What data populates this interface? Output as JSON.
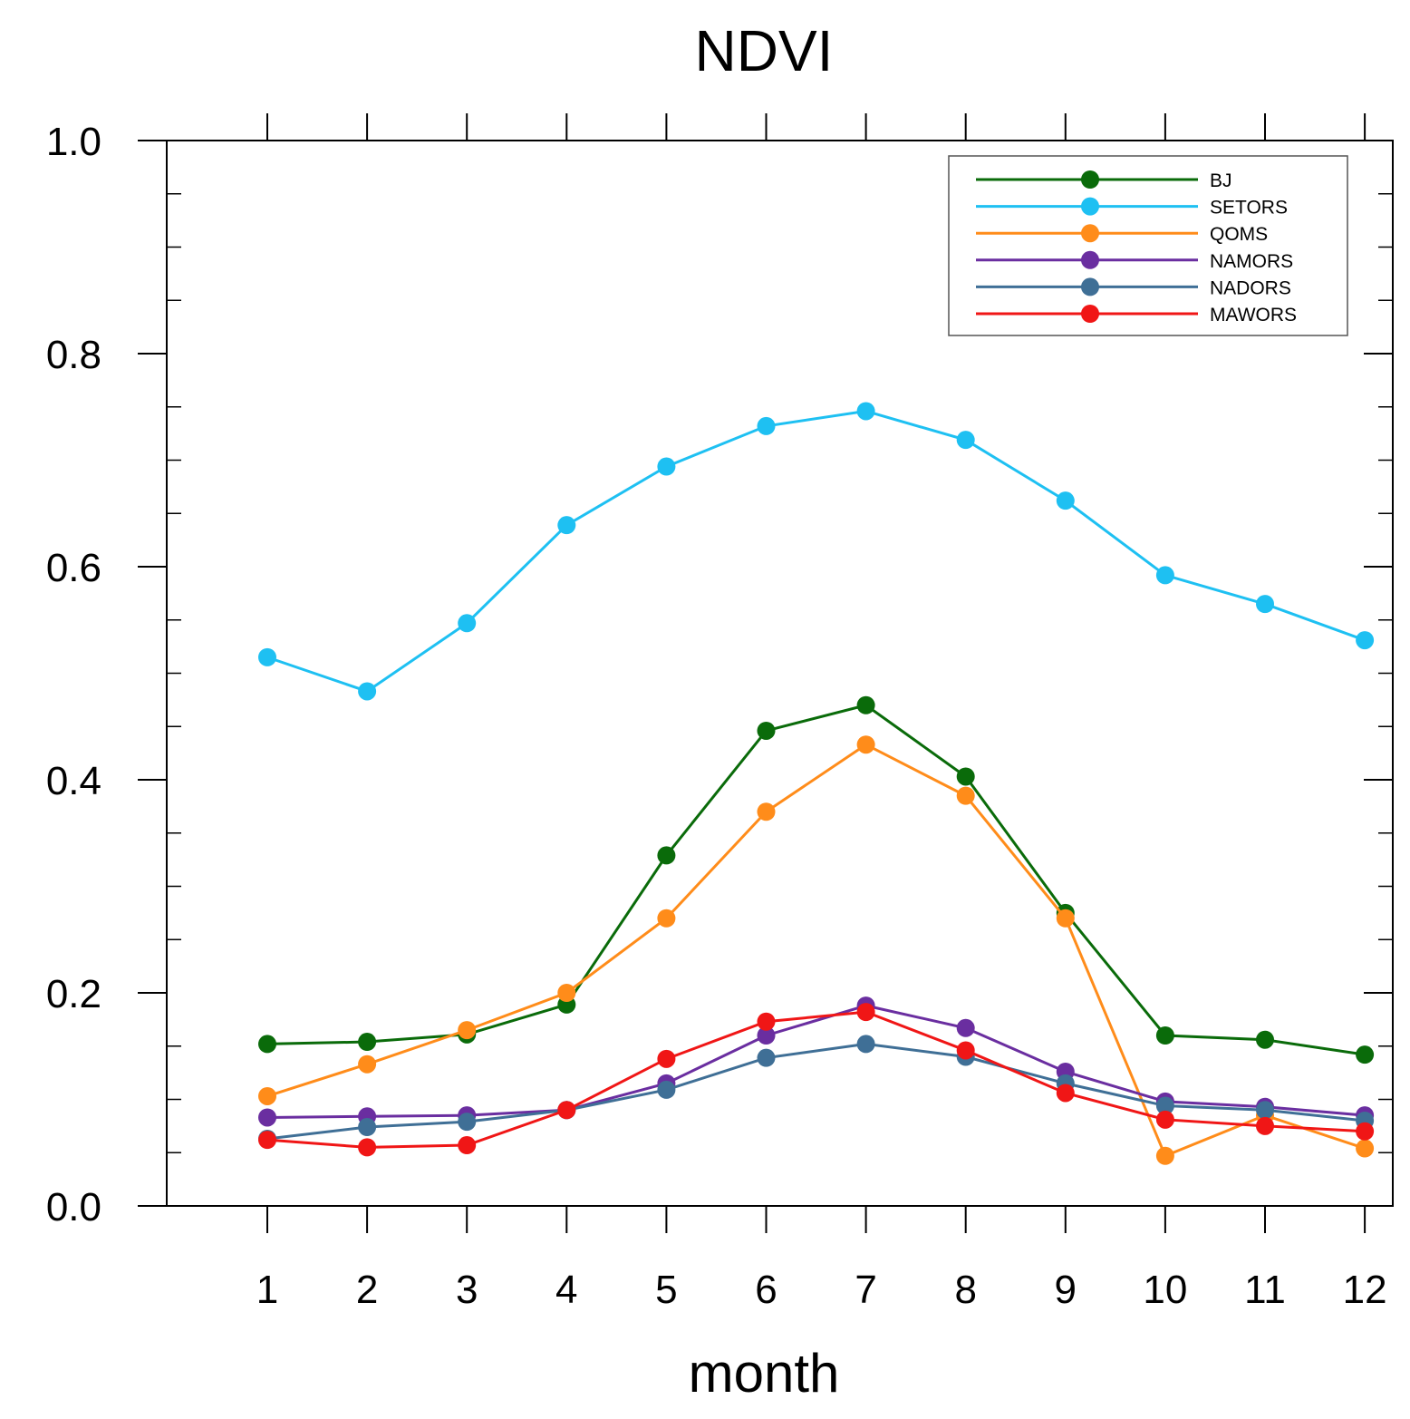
{
  "chart_data": {
    "type": "line",
    "title": "NDVI",
    "xlabel": "month",
    "ylabel": "",
    "x": [
      1,
      2,
      3,
      4,
      5,
      6,
      7,
      8,
      9,
      10,
      11,
      12
    ],
    "x_tick_labels": [
      "1",
      "2",
      "3",
      "4",
      "5",
      "6",
      "7",
      "8",
      "9",
      "10",
      "11",
      "12"
    ],
    "xlim": [
      0,
      12
    ],
    "ylim": [
      0.0,
      1.0
    ],
    "y_tick_labels": [
      "0.0",
      "0.2",
      "0.4",
      "0.6",
      "0.8",
      "1.0"
    ],
    "y_tick_values": [
      0.0,
      0.2,
      0.4,
      0.6,
      0.8,
      1.0
    ],
    "grid": false,
    "legend_position": "top-right",
    "series": [
      {
        "name": "BJ",
        "color": "#0a6b0a",
        "values": [
          0.152,
          0.154,
          0.161,
          0.189,
          0.329,
          0.446,
          0.47,
          0.403,
          0.275,
          0.16,
          0.156,
          0.142
        ]
      },
      {
        "name": "SETORS",
        "color": "#1ec0f2",
        "values": [
          0.515,
          0.483,
          0.547,
          0.639,
          0.694,
          0.732,
          0.746,
          0.719,
          0.662,
          0.592,
          0.565,
          0.531
        ]
      },
      {
        "name": "QOMS",
        "color": "#ff8c1a",
        "values": [
          0.103,
          0.133,
          0.165,
          0.2,
          0.27,
          0.37,
          0.433,
          0.385,
          0.27,
          0.047,
          0.085,
          0.054
        ]
      },
      {
        "name": "NAMORS",
        "color": "#6a2ea0",
        "values": [
          0.083,
          0.084,
          0.085,
          0.09,
          0.115,
          0.16,
          0.188,
          0.167,
          0.126,
          0.098,
          0.093,
          0.085
        ]
      },
      {
        "name": "NADORS",
        "color": "#3f6f96",
        "values": [
          0.063,
          0.074,
          0.079,
          0.09,
          0.109,
          0.139,
          0.152,
          0.14,
          0.115,
          0.094,
          0.09,
          0.08
        ]
      },
      {
        "name": "MAWORS",
        "color": "#f01616",
        "values": [
          0.062,
          0.055,
          0.057,
          0.09,
          0.138,
          0.173,
          0.182,
          0.146,
          0.106,
          0.081,
          0.075,
          0.07
        ]
      }
    ]
  }
}
